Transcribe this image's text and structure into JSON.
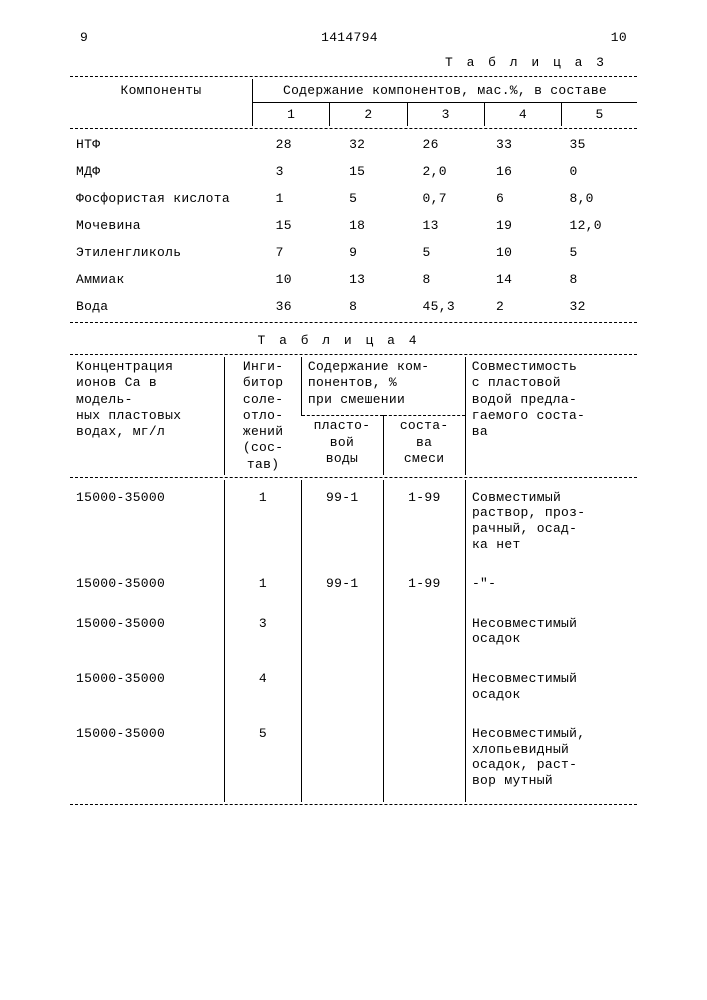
{
  "page": {
    "left_num": "9",
    "doc_num": "1414794",
    "right_num": "10"
  },
  "table3": {
    "title": "Т а б л и ц а  3",
    "col_components": "Компоненты",
    "col_span": "Содержание компонентов, мас.%, в составе",
    "subcols": [
      "1",
      "2",
      "3",
      "4",
      "5"
    ],
    "rows": [
      {
        "name": "НТФ",
        "v": [
          "28",
          "32",
          "26",
          "33",
          "35"
        ]
      },
      {
        "name": "МДФ",
        "v": [
          "3",
          "15",
          "2,0",
          "16",
          "0"
        ]
      },
      {
        "name": "Фосфористая кислота",
        "v": [
          "1",
          "5",
          "0,7",
          "6",
          "8,0"
        ]
      },
      {
        "name": "Мочевина",
        "v": [
          "15",
          "18",
          "13",
          "19",
          "12,0"
        ]
      },
      {
        "name": "Этиленгликоль",
        "v": [
          "7",
          "9",
          "5",
          "10",
          "5"
        ]
      },
      {
        "name": "Аммиак",
        "v": [
          "10",
          "13",
          "8",
          "14",
          "8"
        ]
      },
      {
        "name": "Вода",
        "v": [
          "36",
          "8",
          "45,3",
          "2",
          "32"
        ]
      }
    ]
  },
  "table4": {
    "title": "Т а б л и ц а  4",
    "h_conc_1": "Концентрация",
    "h_conc_2": "ионов Ca в модель-",
    "h_conc_3": "ных пластовых",
    "h_conc_4": "водах, мг/л",
    "h_inh_1": "Инги-",
    "h_inh_2": "битор",
    "h_inh_3": "соле-",
    "h_inh_4": "отло-",
    "h_inh_5": "жений",
    "h_inh_6": "(сос-",
    "h_inh_7": "тав)",
    "h_cont_1": "Содержание ком-",
    "h_cont_2": "понентов, %",
    "h_cont_3": "при смешении",
    "h_sub1_1": "пласто-",
    "h_sub1_2": "вой",
    "h_sub1_3": "воды",
    "h_sub2_1": "соста-",
    "h_sub2_2": "ва",
    "h_sub2_3": "смеси",
    "h_comp_1": "Совместимость",
    "h_comp_2": "с пластовой",
    "h_comp_3": "водой предла-",
    "h_comp_4": "гаемого соста-",
    "h_comp_5": "ва",
    "rows": [
      {
        "conc": "15000-35000",
        "inh": "1",
        "a": "99-1",
        "b": "1-99",
        "res": "Совместимый раствор, проз-\nрачный, осад-\nка нет"
      },
      {
        "conc": "15000-35000",
        "inh": "1",
        "a": "99-1",
        "b": "1-99",
        "res": "-\"-"
      },
      {
        "conc": "15000-35000",
        "inh": "3",
        "a": "",
        "b": "",
        "res": "Несовместимый осадок"
      },
      {
        "conc": "15000-35000",
        "inh": "4",
        "a": "",
        "b": "",
        "res": "Несовместимый осадок"
      },
      {
        "conc": "15000-35000",
        "inh": "5",
        "a": "",
        "b": "",
        "res": "Несовместимый, хлопьевидный осадок, раст-\nвор мутный"
      }
    ]
  }
}
